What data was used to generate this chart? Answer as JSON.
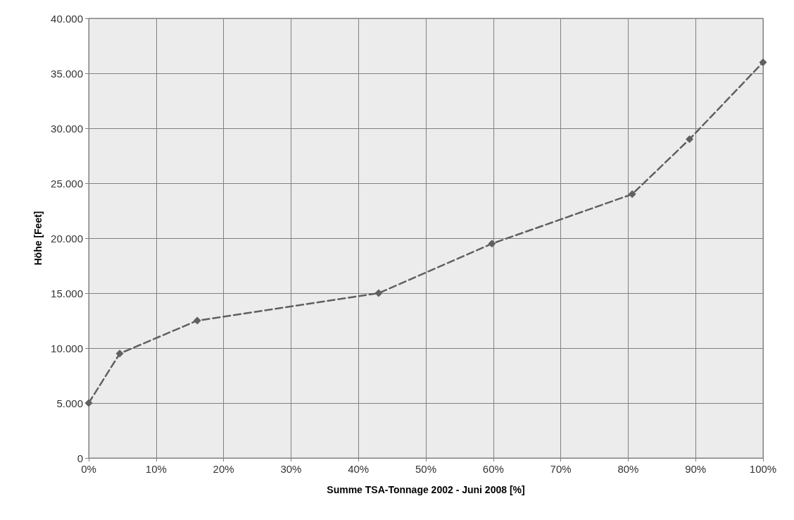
{
  "chart_data": {
    "type": "line",
    "xlabel": "Summe TSA-Tonnage 2002 - Juni 2008 [%]",
    "ylabel": "Höhe [Feet]",
    "x": [
      0,
      4.6,
      16.1,
      43,
      59.8,
      80.6,
      89.1,
      100
    ],
    "series": [
      {
        "color": "#606060",
        "values": [
          5000,
          9500,
          12500,
          15000,
          19500,
          24000,
          29000,
          36000
        ]
      }
    ],
    "xlim": [
      0,
      100
    ],
    "xticks": [
      {
        "value": 0,
        "label": "0%"
      },
      {
        "value": 10,
        "label": "10%"
      },
      {
        "value": 20,
        "label": "20%"
      },
      {
        "value": 30,
        "label": "30%"
      },
      {
        "value": 40,
        "label": "40%"
      },
      {
        "value": 50,
        "label": "50%"
      },
      {
        "value": 60,
        "label": "60%"
      },
      {
        "value": 70,
        "label": "70%"
      },
      {
        "value": 80,
        "label": "80%"
      },
      {
        "value": 90,
        "label": "90%"
      },
      {
        "value": 100,
        "label": "100%"
      }
    ],
    "ylim": [
      0,
      40000
    ],
    "yticks": [
      0,
      {
        "value": 5000,
        "label": "5.000"
      },
      {
        "value": 10000,
        "label": "10.000"
      },
      {
        "value": 15000,
        "label": "15.000"
      },
      {
        "value": 20000,
        "label": "20.000"
      },
      {
        "value": 25000,
        "label": "25.000"
      },
      {
        "value": 30000,
        "label": "30.000"
      },
      {
        "value": 35000,
        "label": "35.000"
      },
      {
        "value": 40000,
        "label": "40.000"
      }
    ],
    "grid": true,
    "marker": "diamond",
    "line_style": "dashed"
  }
}
